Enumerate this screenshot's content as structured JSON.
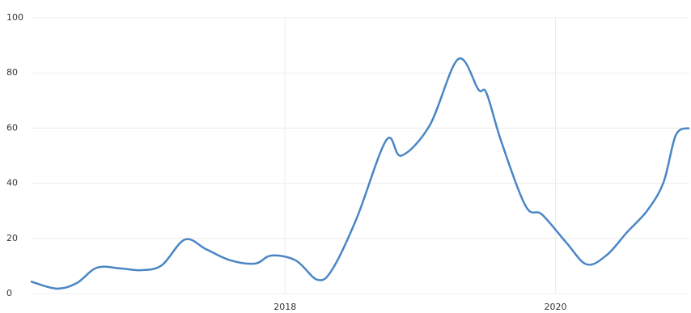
{
  "chart_data": {
    "type": "line",
    "x": [
      2016.12,
      2016.31,
      2016.46,
      2016.61,
      2016.79,
      2016.94,
      2017.09,
      2017.26,
      2017.42,
      2017.6,
      2017.78,
      2017.9,
      2018.08,
      2018.24,
      2018.35,
      2018.53,
      2018.75,
      2018.86,
      2019.07,
      2019.28,
      2019.43,
      2019.49,
      2019.6,
      2019.78,
      2019.9,
      2020.08,
      2020.23,
      2020.38,
      2020.53,
      2020.68,
      2020.8,
      2020.89,
      2020.99
    ],
    "series": [
      {
        "color": "#4a86c5",
        "values": [
          4.4,
          1.8,
          3.8,
          9.4,
          9.1,
          8.5,
          10.3,
          19.6,
          16,
          12,
          10.9,
          13.8,
          12,
          5,
          8.8,
          27.3,
          55.7,
          50,
          61,
          85,
          74,
          72.7,
          55,
          31.7,
          28.7,
          18.5,
          10.6,
          14,
          22.3,
          30.2,
          40.5,
          57.5,
          60
        ]
      }
    ],
    "xlim": [
      2016.12,
      2020.99
    ],
    "xticks": [
      2018,
      2020
    ],
    "ylim": [
      0,
      100
    ],
    "yticks": [
      0,
      20,
      40,
      60,
      80,
      100
    ],
    "grid": true
  }
}
